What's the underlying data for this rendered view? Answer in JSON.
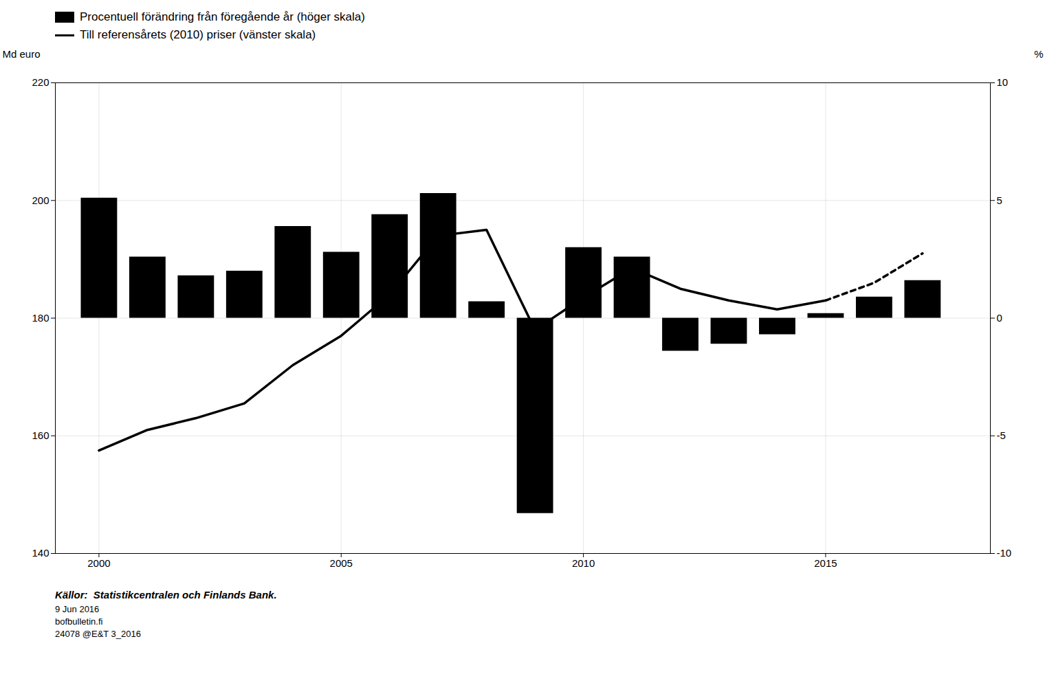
{
  "chart_data": {
    "type": "combo",
    "x": [
      2000,
      2001,
      2002,
      2003,
      2004,
      2005,
      2006,
      2007,
      2008,
      2009,
      2010,
      2011,
      2012,
      2013,
      2014,
      2015,
      2016,
      2017
    ],
    "xlim": [
      1999.1,
      2018.4
    ],
    "xticks": [
      2000,
      2005,
      2010,
      2015
    ],
    "ylabel": "Md euro",
    "ylim": [
      140,
      220
    ],
    "yticks": [
      140,
      160,
      180,
      200,
      220
    ],
    "y2label": "%",
    "y2lim": [
      -10,
      10
    ],
    "y2ticks": [
      -10,
      -5,
      0,
      5,
      10
    ],
    "grid": true,
    "legend": "upper left",
    "series": [
      {
        "name": "Procentuell förändring från föregående år (höger skala)",
        "type": "bar",
        "axis": "y2",
        "values": [
          5.1,
          2.6,
          1.8,
          2.0,
          3.9,
          2.8,
          4.4,
          5.3,
          0.7,
          -8.3,
          3.0,
          2.6,
          -1.4,
          -1.1,
          -0.7,
          0.2,
          0.9,
          1.6
        ]
      },
      {
        "name": "Till referensårets (2010) priser (vänster skala)",
        "type": "line",
        "axis": "y",
        "dashed_from": 2015,
        "values": [
          157.5,
          161.0,
          163.0,
          165.5,
          172.0,
          177.0,
          184.0,
          194.0,
          195.0,
          178.0,
          183.5,
          188.5,
          185.0,
          183.0,
          181.5,
          183.0,
          186.0,
          191.0
        ]
      }
    ],
    "annotations": [
      "Källor:  Statistikcentralen och Finlands Bank.",
      "9 Jun 2016",
      "bofbulletin.fi",
      "24078 @E&T 3_2016"
    ]
  }
}
